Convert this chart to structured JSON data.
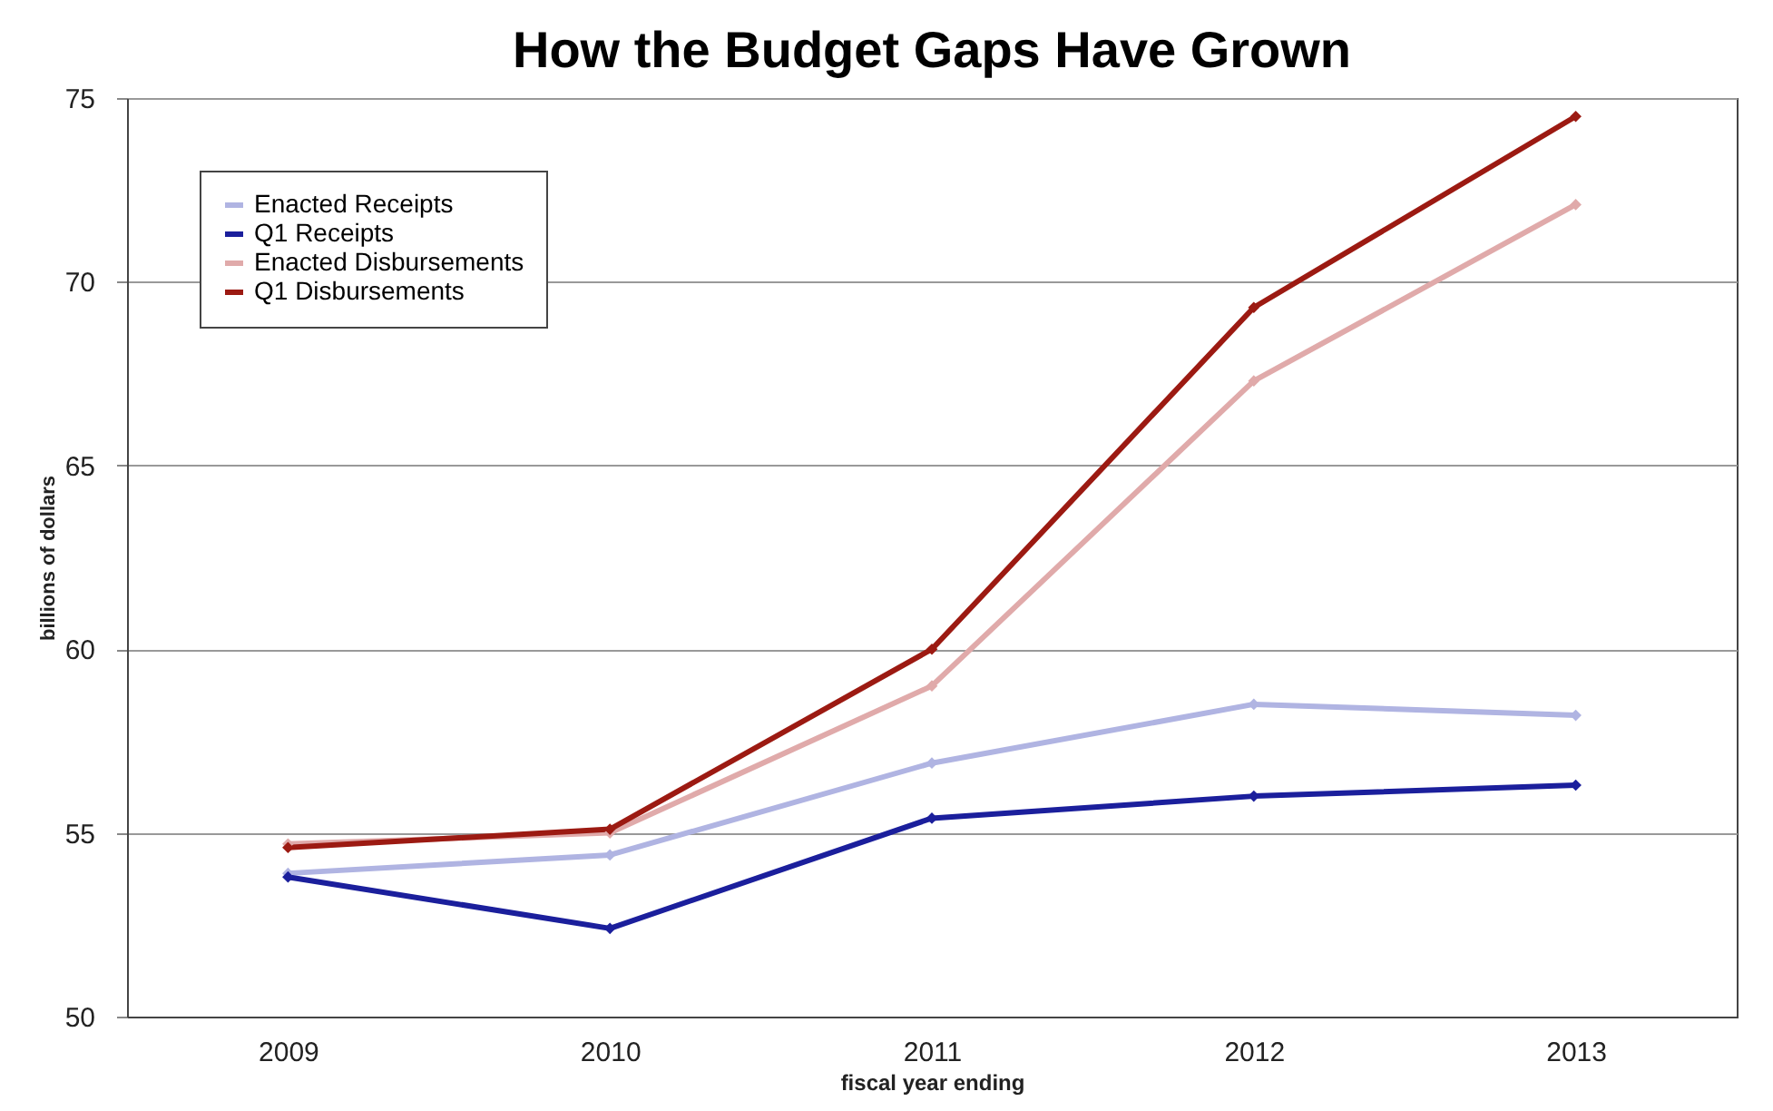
{
  "chart_data": {
    "type": "line",
    "title": "How the Budget Gaps Have Grown",
    "xlabel": "fiscal year ending",
    "ylabel": "billions of dollars",
    "categories": [
      "2009",
      "2010",
      "2011",
      "2012",
      "2013"
    ],
    "series": [
      {
        "name": "Enacted Receipts",
        "color": "#b0b4e2",
        "values": [
          53.9,
          54.4,
          56.9,
          58.5,
          58.2
        ]
      },
      {
        "name": "Q1 Receipts",
        "color": "#1b1f9c",
        "values": [
          53.8,
          52.4,
          55.4,
          56.0,
          56.3
        ]
      },
      {
        "name": "Enacted Disbursements",
        "color": "#e0aaaa",
        "values": [
          54.7,
          55.0,
          59.0,
          67.3,
          72.1
        ]
      },
      {
        "name": "Q1 Disbursements",
        "color": "#9c1a12",
        "values": [
          54.6,
          55.1,
          60.0,
          69.3,
          74.5
        ]
      }
    ],
    "ylim": [
      50,
      75
    ],
    "yticks": [
      50,
      55,
      60,
      65,
      70,
      75
    ],
    "grid": "y",
    "legend": "top left",
    "marker": "diamond",
    "line_style": "solid"
  }
}
